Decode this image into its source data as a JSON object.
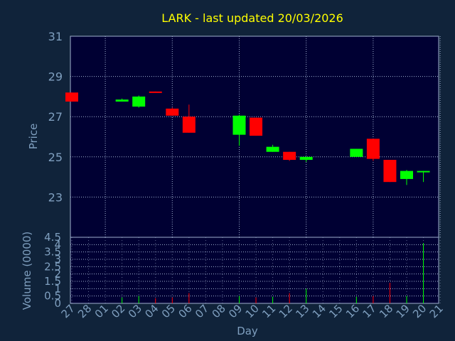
{
  "colors": {
    "background": "#10233a",
    "plot_background": "#000033",
    "grid": "#9fb0cf",
    "axis_text": "#7f9fbf",
    "title": "#ffff00",
    "up": "#00ff00",
    "down": "#ff0000"
  },
  "chart_data": {
    "type": "candlestick",
    "title": "LARK - last updated 20/03/2026",
    "xlabel": "Day",
    "price_ylabel": "Price",
    "volume_ylabel": "Volume (0000)",
    "price_ylim": [
      21,
      31
    ],
    "price_ticks": [
      "23",
      "25",
      "27",
      "29",
      "31"
    ],
    "volume_ylim": [
      0,
      4.5
    ],
    "volume_ticks": [
      "0",
      "0.5",
      "1",
      "1.5",
      "2",
      "2.5",
      "3",
      "3.5",
      "4",
      "4.5"
    ],
    "grid": true,
    "x_labels": [
      "27",
      "28",
      "01",
      "02",
      "03",
      "04",
      "05",
      "06",
      "07",
      "08",
      "09",
      "10",
      "11",
      "12",
      "13",
      "14",
      "15",
      "16",
      "17",
      "18",
      "19",
      "20",
      "21"
    ],
    "candles": [
      {
        "day": "27",
        "open": 28.2,
        "high": 28.2,
        "low": 27.75,
        "close": 27.75,
        "volume": 0.0
      },
      {
        "day": "02",
        "open": 27.75,
        "high": 27.9,
        "low": 27.75,
        "close": 27.85,
        "volume": 0.4
      },
      {
        "day": "03",
        "open": 27.5,
        "high": 28.05,
        "low": 27.45,
        "close": 28.0,
        "volume": 0.5
      },
      {
        "day": "04",
        "open": 28.25,
        "high": 28.25,
        "low": 28.2,
        "close": 28.2,
        "volume": 0.35
      },
      {
        "day": "05",
        "open": 27.4,
        "high": 27.45,
        "low": 27.05,
        "close": 27.05,
        "volume": 0.4
      },
      {
        "day": "06",
        "open": 27.0,
        "high": 27.6,
        "low": 26.2,
        "close": 26.2,
        "volume": 0.7
      },
      {
        "day": "09",
        "open": 26.1,
        "high": 27.1,
        "low": 25.55,
        "close": 27.05,
        "volume": 0.5
      },
      {
        "day": "10",
        "open": 26.95,
        "high": 26.95,
        "low": 26.05,
        "close": 26.05,
        "volume": 0.4
      },
      {
        "day": "11",
        "open": 25.25,
        "high": 25.6,
        "low": 25.25,
        "close": 25.5,
        "volume": 0.45
      },
      {
        "day": "12",
        "open": 25.25,
        "high": 25.25,
        "low": 24.8,
        "close": 24.85,
        "volume": 0.7
      },
      {
        "day": "13",
        "open": 24.85,
        "high": 25.0,
        "low": 24.75,
        "close": 25.0,
        "volume": 1.0
      },
      {
        "day": "16",
        "open": 25.0,
        "high": 25.4,
        "low": 25.0,
        "close": 25.4,
        "volume": 0.45
      },
      {
        "day": "17",
        "open": 25.9,
        "high": 25.9,
        "low": 24.8,
        "close": 24.9,
        "volume": 0.5
      },
      {
        "day": "18",
        "open": 24.85,
        "high": 24.85,
        "low": 23.75,
        "close": 23.75,
        "volume": 1.4
      },
      {
        "day": "19",
        "open": 23.9,
        "high": 24.35,
        "low": 23.6,
        "close": 24.3,
        "volume": 0.5
      },
      {
        "day": "20",
        "open": 24.25,
        "high": 24.3,
        "low": 23.75,
        "close": 24.3,
        "volume": 4.1
      }
    ]
  }
}
